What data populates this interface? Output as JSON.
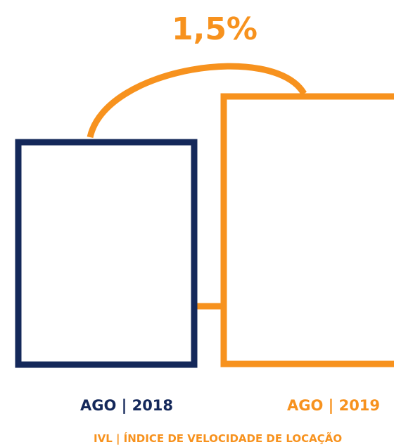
{
  "change_label": "1,5%",
  "periods": [
    {
      "label": "AGO | 2018"
    },
    {
      "label": "AGO | 2019"
    }
  ],
  "footer": "IVL | ÍNDICE DE VELOCIDADE DE LOCAÇÃO"
}
